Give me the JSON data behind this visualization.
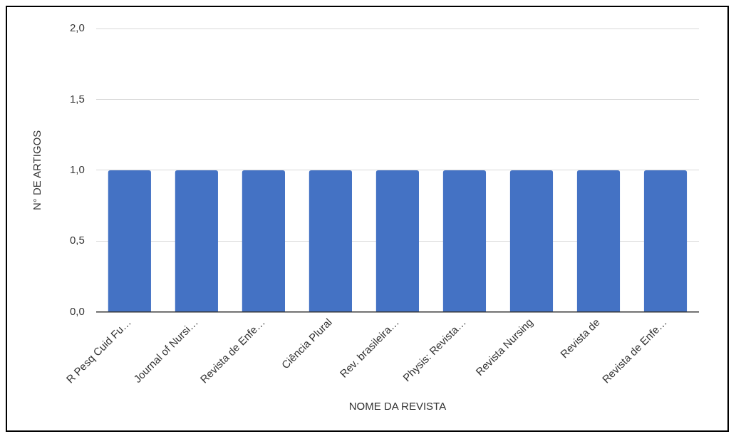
{
  "chart_data": {
    "type": "bar",
    "xlabel": "NOME DA REVISTA",
    "ylabel": "N° DE ARTIGOS",
    "categories": [
      "R Pesq Cuid Fu…",
      "Journal of Nursi…",
      "Revista de Enfe…",
      "Ciência Plural",
      "Rev. brasileira…",
      "Physis: Revista…",
      "Revista Nursing",
      "Revista de",
      "Revista de Enfe…"
    ],
    "values": [
      1,
      1,
      1,
      1,
      1,
      1,
      1,
      1,
      1
    ],
    "color": "#4472c4",
    "ylim": [
      0,
      2
    ],
    "yticks": [
      {
        "value": 0,
        "label": "0,0"
      },
      {
        "value": 0.5,
        "label": "0,5"
      },
      {
        "value": 1,
        "label": "1,0"
      },
      {
        "value": 1.5,
        "label": "1,5"
      },
      {
        "value": 2,
        "label": "2,0"
      }
    ],
    "grid": "y",
    "legend": false
  }
}
